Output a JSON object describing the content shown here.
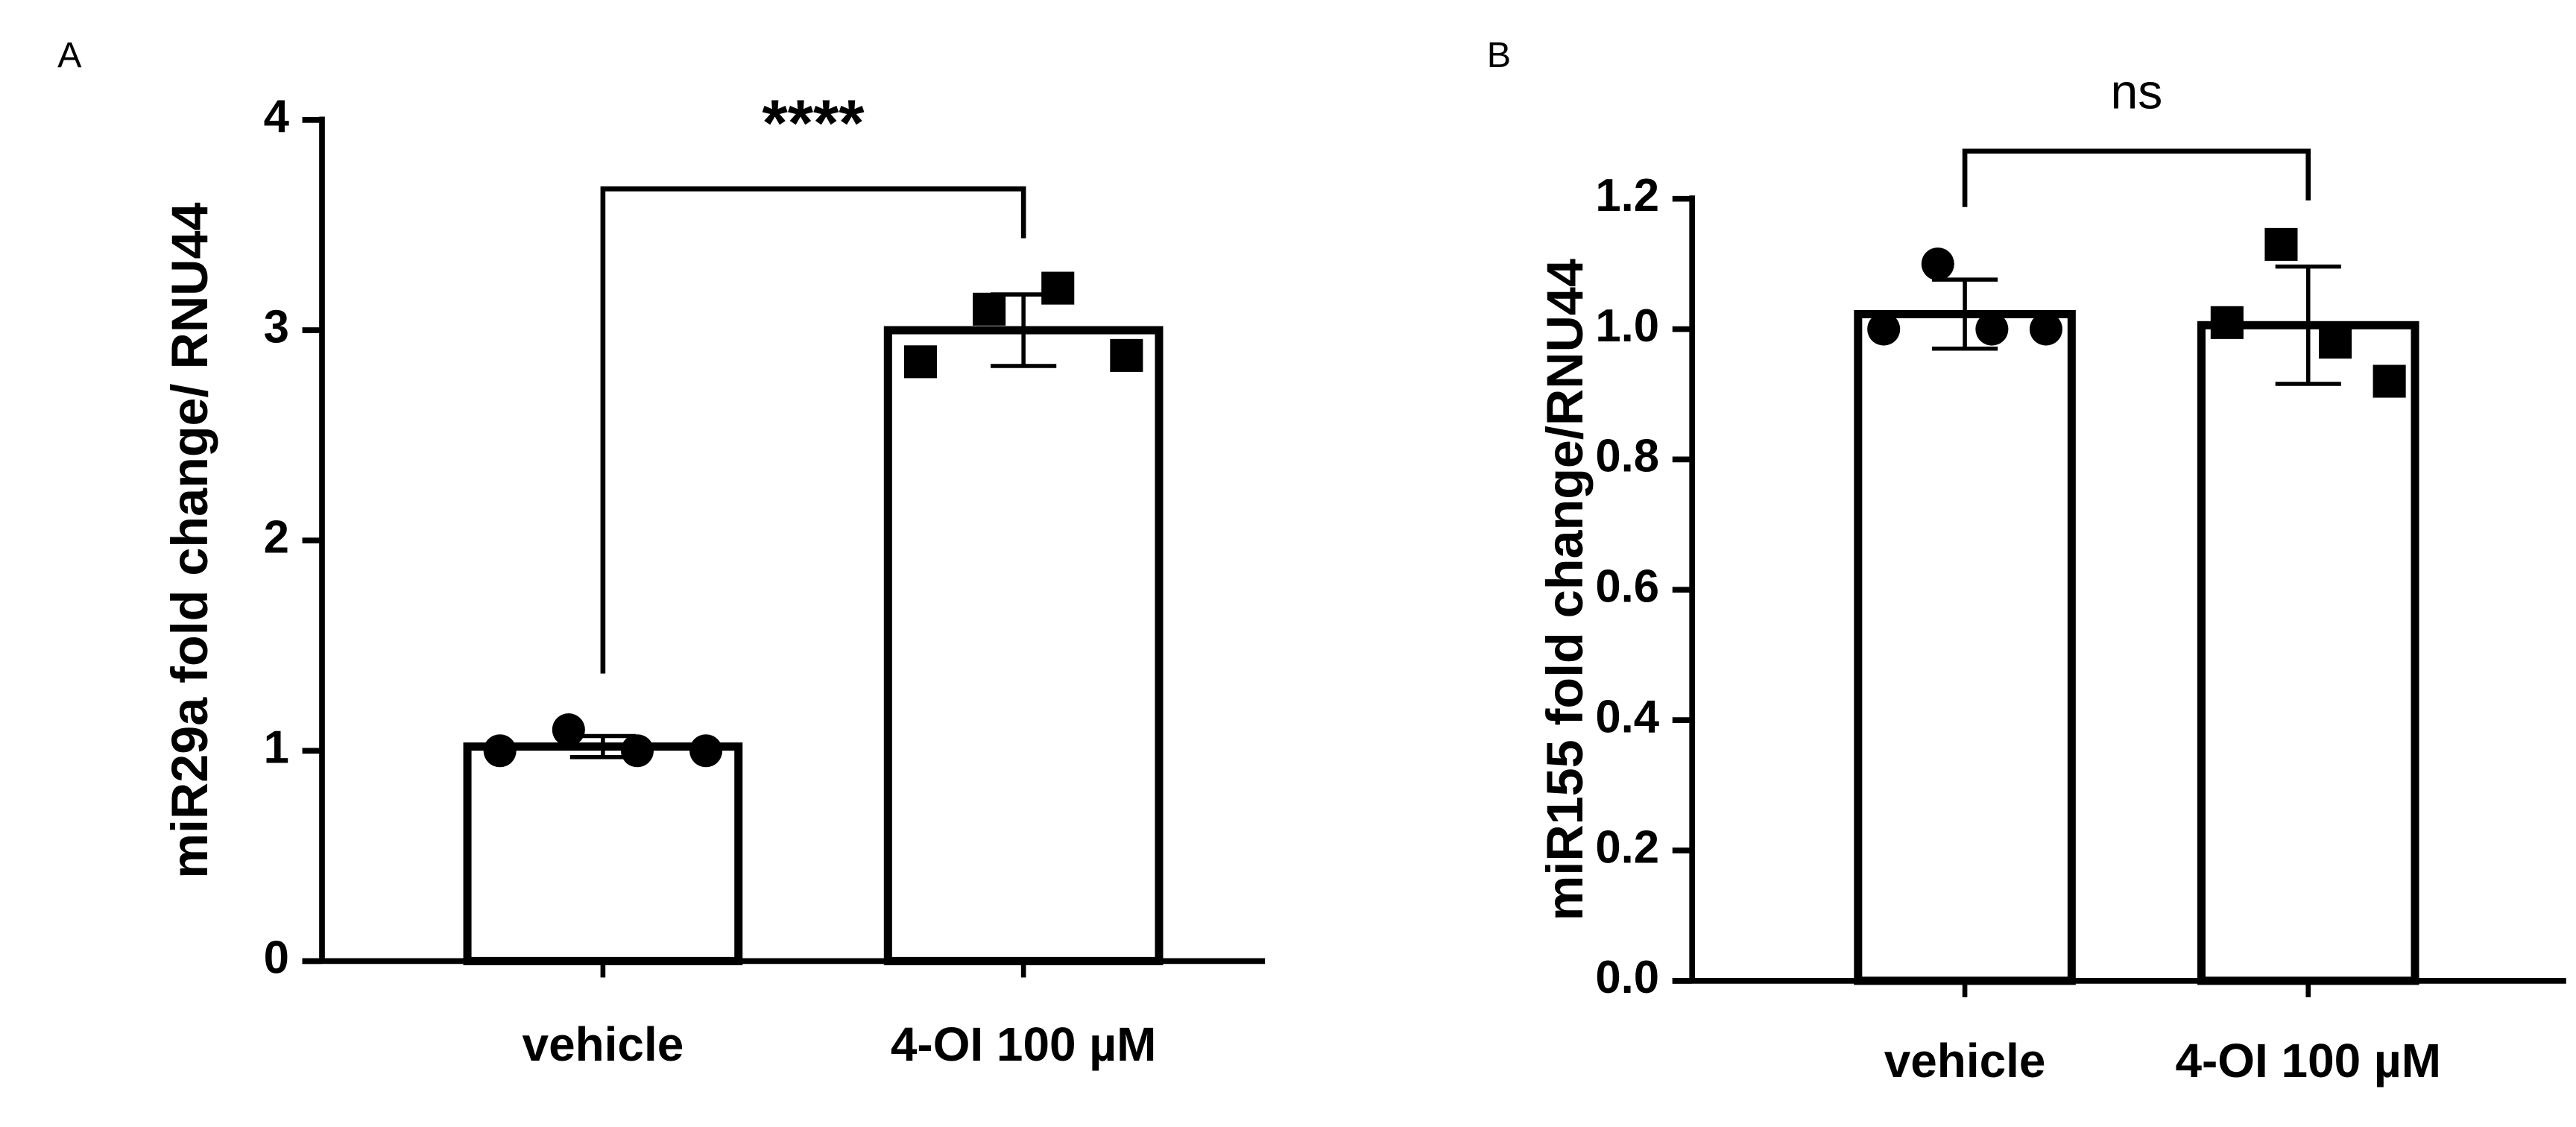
{
  "chart_data": [
    {
      "type": "bar",
      "panel": "A",
      "ylabel": "miR29a fold change/ RNU44",
      "categories": [
        "vehicle",
        "4-OI 100 µM"
      ],
      "values": [
        1.02,
        3.0
      ],
      "errors": [
        0.05,
        0.17
      ],
      "points": [
        [
          1.0,
          1.1,
          1.0,
          1.0
        ],
        [
          2.85,
          3.1,
          3.2,
          2.88
        ]
      ],
      "markers": [
        "circle",
        "square"
      ],
      "ylim": [
        0,
        4
      ],
      "yticks": [
        0,
        1,
        2,
        3,
        4
      ],
      "annotation": "****"
    },
    {
      "type": "bar",
      "panel": "B",
      "ylabel": "miR155 fold change/RNU44",
      "categories": [
        "vehicle",
        "4-OI 100 µM"
      ],
      "values": [
        1.023,
        1.006
      ],
      "errors": [
        0.053,
        0.09
      ],
      "points": [
        [
          1.0,
          1.1,
          1.0,
          1.0
        ],
        [
          1.01,
          1.13,
          0.98,
          0.92
        ]
      ],
      "markers": [
        "circle",
        "square"
      ],
      "ylim": [
        0,
        1.2
      ],
      "yticks": [
        {
          "value": 0,
          "label": "0.0"
        },
        0.2,
        0.4,
        0.6,
        0.8,
        {
          "value": 1,
          "label": "1.0"
        },
        1.2
      ],
      "annotation": "ns"
    }
  ]
}
